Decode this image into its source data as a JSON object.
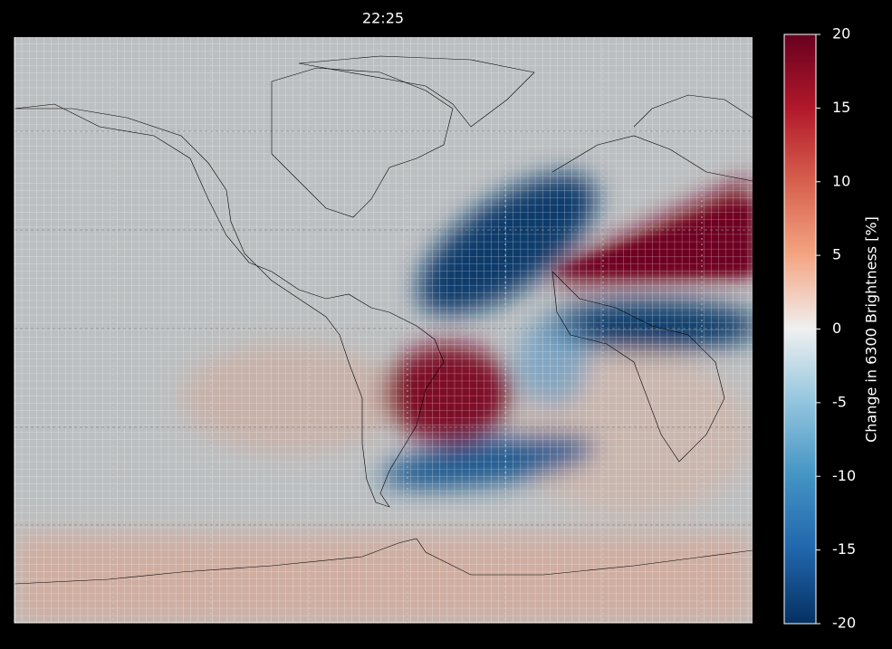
{
  "map": {
    "title": "22:25",
    "colorbar": {
      "label": "Change in 6300 Brightness [%]",
      "lim": [
        -20,
        20
      ],
      "ticks": [
        -20,
        -15,
        -10,
        -5,
        0,
        5,
        10,
        15,
        20
      ]
    }
  }
}
